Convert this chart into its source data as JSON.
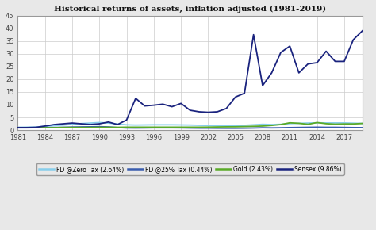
{
  "title": "Historical returns of assets, inflation adjusted (1981-2019)",
  "years": [
    1981,
    1982,
    1983,
    1984,
    1985,
    1986,
    1987,
    1988,
    1989,
    1990,
    1991,
    1992,
    1993,
    1994,
    1995,
    1996,
    1997,
    1998,
    1999,
    2000,
    2001,
    2002,
    2003,
    2004,
    2005,
    2006,
    2007,
    2008,
    2009,
    2010,
    2011,
    2012,
    2013,
    2014,
    2015,
    2016,
    2017,
    2018,
    2019
  ],
  "fd_zero_tax": [
    1.1,
    1.15,
    1.2,
    1.5,
    1.8,
    2.0,
    2.3,
    2.6,
    2.8,
    3.0,
    2.8,
    2.4,
    2.1,
    2.0,
    2.05,
    2.1,
    2.1,
    2.1,
    2.05,
    2.0,
    1.9,
    1.85,
    1.8,
    1.8,
    1.8,
    1.9,
    2.1,
    2.3,
    2.2,
    2.3,
    2.6,
    2.7,
    2.8,
    2.9,
    2.85,
    2.85,
    2.85,
    2.75,
    2.65
  ],
  "fd_25_tax": [
    0.9,
    0.9,
    0.95,
    1.0,
    1.05,
    1.1,
    1.2,
    1.25,
    1.3,
    1.35,
    1.25,
    1.0,
    0.85,
    0.82,
    0.85,
    0.9,
    0.9,
    0.9,
    0.88,
    0.82,
    0.78,
    0.78,
    0.75,
    0.73,
    0.73,
    0.76,
    0.82,
    0.92,
    0.88,
    0.92,
    1.0,
    1.05,
    1.1,
    1.15,
    1.1,
    1.1,
    1.05,
    1.0,
    0.98
  ],
  "gold": [
    1.0,
    0.98,
    0.97,
    0.95,
    0.96,
    1.05,
    1.05,
    1.05,
    1.05,
    1.1,
    1.1,
    1.1,
    1.15,
    1.15,
    1.15,
    1.15,
    1.15,
    1.15,
    1.15,
    1.15,
    1.15,
    1.18,
    1.25,
    1.3,
    1.32,
    1.4,
    1.5,
    1.6,
    1.85,
    2.2,
    2.9,
    2.7,
    2.3,
    3.0,
    2.55,
    2.35,
    2.45,
    2.45,
    2.65
  ],
  "sensex": [
    1.0,
    1.0,
    1.1,
    1.6,
    2.2,
    2.5,
    2.8,
    2.5,
    2.2,
    2.5,
    3.2,
    2.2,
    4.0,
    12.5,
    9.5,
    9.8,
    10.2,
    9.2,
    10.5,
    7.8,
    7.2,
    7.0,
    7.2,
    8.5,
    13.0,
    14.5,
    37.5,
    17.5,
    22.5,
    30.5,
    33.0,
    22.5,
    26.0,
    26.5,
    31.0,
    27.0,
    27.0,
    35.5,
    39.0
  ],
  "fd_zero_tax_color": "#87CEEB",
  "fd_25_tax_color": "#3A5DAE",
  "gold_color": "#5AAA28",
  "sensex_color": "#1A237E",
  "legend_labels": [
    "FD @Zero Tax (2.64%)",
    "FD @25% Tax (0.44%)",
    "Gold (2.43%)",
    "Sensex (9.86%)"
  ],
  "ylim": [
    0,
    45
  ],
  "yticks": [
    0,
    5,
    10,
    15,
    20,
    25,
    30,
    35,
    40,
    45
  ],
  "xticks": [
    1981,
    1984,
    1987,
    1990,
    1993,
    1996,
    1999,
    2002,
    2005,
    2008,
    2011,
    2014,
    2017
  ],
  "fig_bg_color": "#E8E8E8",
  "plot_bg_color": "#FFFFFF",
  "grid_color": "#CCCCCC",
  "title_color": "#111111",
  "tick_color": "#444444",
  "border_color": "#999999"
}
